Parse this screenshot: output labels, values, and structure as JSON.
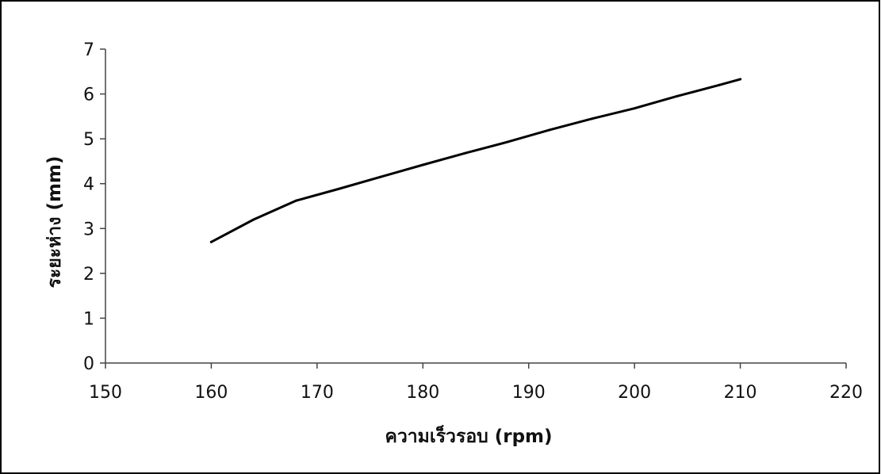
{
  "chart_data": {
    "type": "line",
    "title": "",
    "xlabel": "ความเร็วรอบ (rpm)",
    "ylabel": "ระยะห่าง (mm)",
    "xlim": [
      150,
      220
    ],
    "ylim": [
      0,
      7
    ],
    "xticks": [
      "150",
      "160",
      "170",
      "180",
      "190",
      "200",
      "210",
      "220"
    ],
    "yticks": [
      "0",
      "1",
      "2",
      "3",
      "4",
      "5",
      "6",
      "7"
    ],
    "grid": false,
    "legend": "none",
    "series": [
      {
        "x": [
          160,
          164,
          168,
          172,
          176,
          180,
          184,
          188,
          192,
          196,
          200,
          204,
          208,
          210
        ],
        "y": [
          2.7,
          3.2,
          3.62,
          3.88,
          4.15,
          4.42,
          4.68,
          4.93,
          5.2,
          5.45,
          5.68,
          5.95,
          6.2,
          6.33
        ],
        "color": "#000000"
      }
    ]
  }
}
